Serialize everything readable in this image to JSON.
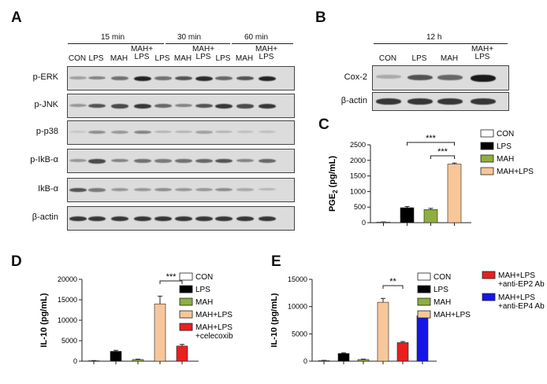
{
  "panels": {
    "A": {
      "label": "A",
      "time_groups": [
        "15 min",
        "30 min",
        "60 min"
      ],
      "lanes": [
        "CON",
        "LPS",
        "MAH",
        "MAH+\nLPS",
        "LPS",
        "MAH",
        "MAH+\nLPS",
        "LPS",
        "MAH",
        "MAH+\nLPS"
      ],
      "rows": [
        "p-ERK",
        "p-JNK",
        "p-p38",
        "p-IkB-α",
        "IkB-α",
        "β-actin"
      ]
    },
    "B": {
      "label": "B",
      "time_group": "12 h",
      "lanes": [
        "CON",
        "LPS",
        "MAH",
        "MAH+\nLPS"
      ],
      "rows": [
        "Cox-2",
        "β-actin"
      ]
    },
    "C": {
      "label": "C",
      "sig": [
        "***",
        "***"
      ],
      "legend": [
        "CON",
        "LPS",
        "MAH",
        "MAH+LPS"
      ]
    },
    "D": {
      "label": "D",
      "sig": [
        "***"
      ],
      "legend": [
        "CON",
        "LPS",
        "MAH",
        "MAH+LPS",
        "MAH+LPS\n+celecoxib"
      ]
    },
    "E": {
      "label": "E",
      "sig": [
        "**"
      ],
      "legend": [
        "CON",
        "LPS",
        "MAH",
        "MAH+LPS",
        "MAH+LPS\n+anti-EP2 Ab",
        "MAH+LPS\n+anti-EP4 Ab"
      ]
    }
  },
  "colors": {
    "CON": "#ffffff",
    "LPS": "#000000",
    "MAH": "#8fae3f",
    "MAH+LPS": "#f7c79a",
    "celecoxib": "#e8201f",
    "anti-EP2": "#e8201f",
    "anti-EP4": "#1515e8"
  },
  "chart_data": [
    {
      "panel": "C",
      "type": "bar",
      "ylabel": "PGE2 (pg/mL)",
      "ylim": [
        0,
        2500
      ],
      "yticks": [
        0,
        500,
        1000,
        1500,
        2000,
        2500
      ],
      "categories": [
        "CON",
        "LPS",
        "MAH",
        "MAH+LPS"
      ],
      "values": [
        20,
        480,
        420,
        1880
      ],
      "errors": [
        5,
        40,
        40,
        35
      ]
    },
    {
      "panel": "D",
      "type": "bar",
      "ylabel": "IL-10 (pg/mL)",
      "ylim": [
        0,
        20000
      ],
      "yticks": [
        0,
        5000,
        10000,
        15000,
        20000
      ],
      "categories": [
        "CON",
        "LPS",
        "MAH",
        "MAH+LPS",
        "MAH+LPS +celecoxib"
      ],
      "values": [
        100,
        2400,
        400,
        14000,
        3700
      ],
      "errors": [
        50,
        250,
        100,
        1900,
        400
      ]
    },
    {
      "panel": "E",
      "type": "bar",
      "ylabel": "IL-10 (pg/mL)",
      "ylim": [
        0,
        15000
      ],
      "yticks": [
        0,
        5000,
        10000,
        15000
      ],
      "categories": [
        "CON",
        "LPS",
        "MAH",
        "MAH+LPS",
        "MAH+LPS +anti-EP2 Ab",
        "MAH+LPS +anti-EP4 Ab"
      ],
      "values": [
        100,
        1400,
        300,
        10800,
        3400,
        8300
      ],
      "errors": [
        50,
        150,
        80,
        700,
        200,
        400
      ]
    }
  ]
}
